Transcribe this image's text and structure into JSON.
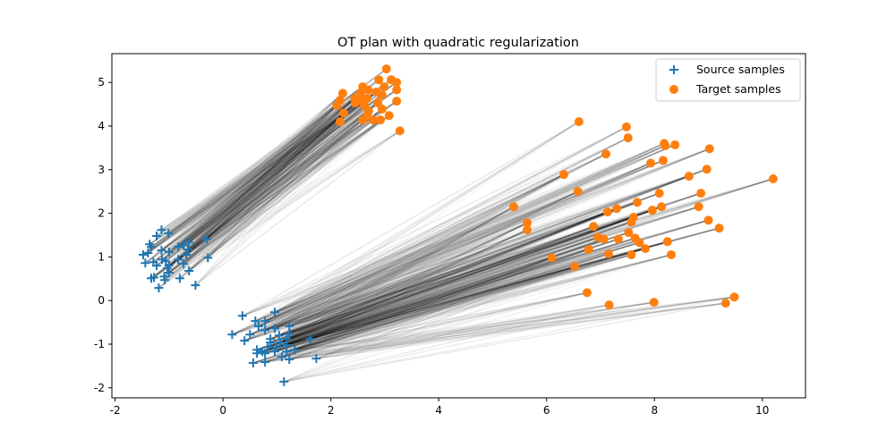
{
  "chart_data": {
    "type": "scatter",
    "title": "OT plan with quadratic regularization",
    "xlabel": "",
    "ylabel": "",
    "xlim": [
      -2.06,
      10.8
    ],
    "ylim": [
      -2.23,
      5.66
    ],
    "xticks": [
      "-2",
      "0",
      "2",
      "4",
      "6",
      "8",
      "10"
    ],
    "yticks": [
      "-2",
      "-1",
      "0",
      "1",
      "2",
      "3",
      "4",
      "5"
    ],
    "grid": false,
    "legend": "top-right",
    "colors": {
      "source": "#1f77b4",
      "target": "#ff7f0e",
      "plan": "#000000"
    },
    "series": [
      {
        "name": "Source samples",
        "marker": "plus",
        "points": [
          [
            -1.14,
            1.62
          ],
          [
            -1.23,
            1.48
          ],
          [
            -1.01,
            1.54
          ],
          [
            -1.36,
            1.29
          ],
          [
            -1.33,
            1.23
          ],
          [
            -0.3,
            1.41
          ],
          [
            -1.48,
            1.05
          ],
          [
            -1.39,
            1.09
          ],
          [
            -1.14,
            1.15
          ],
          [
            -1.0,
            1.11
          ],
          [
            -0.83,
            1.23
          ],
          [
            -0.73,
            1.27
          ],
          [
            -0.63,
            1.33
          ],
          [
            -0.65,
            1.17
          ],
          [
            -0.68,
            1.05
          ],
          [
            -0.28,
            0.98
          ],
          [
            -1.44,
            0.86
          ],
          [
            -1.29,
            0.88
          ],
          [
            -1.23,
            0.8
          ],
          [
            -1.13,
            0.94
          ],
          [
            -1.0,
            0.8
          ],
          [
            -0.83,
            0.94
          ],
          [
            -0.73,
            0.84
          ],
          [
            -0.63,
            0.68
          ],
          [
            -1.0,
            0.64
          ],
          [
            -1.28,
            0.53
          ],
          [
            -1.09,
            0.55
          ],
          [
            -0.8,
            0.51
          ],
          [
            -1.08,
            0.47
          ],
          [
            -1.19,
            0.29
          ],
          [
            -0.51,
            0.35
          ],
          [
            -1.03,
            0.74
          ],
          [
            -1.33,
            0.51
          ],
          [
            -1.06,
            0.9
          ],
          [
            0.36,
            -0.35
          ],
          [
            0.96,
            -0.27
          ],
          [
            0.6,
            -0.47
          ],
          [
            0.78,
            -0.47
          ],
          [
            0.66,
            -0.59
          ],
          [
            0.78,
            -0.68
          ],
          [
            0.96,
            -0.64
          ],
          [
            1.23,
            -0.59
          ],
          [
            0.17,
            -0.78
          ],
          [
            0.5,
            -0.78
          ],
          [
            0.4,
            -0.92
          ],
          [
            1.04,
            -0.8
          ],
          [
            1.23,
            -0.76
          ],
          [
            0.88,
            -0.88
          ],
          [
            1.62,
            -0.88
          ],
          [
            0.63,
            -1.13
          ],
          [
            0.83,
            -1.07
          ],
          [
            0.99,
            -1.07
          ],
          [
            1.18,
            -1.02
          ],
          [
            1.33,
            -1.13
          ],
          [
            0.63,
            -1.21
          ],
          [
            0.78,
            -1.21
          ],
          [
            0.96,
            -1.17
          ],
          [
            1.18,
            -1.17
          ],
          [
            1.09,
            -1.29
          ],
          [
            1.73,
            -1.33
          ],
          [
            1.23,
            -1.35
          ],
          [
            0.56,
            -1.43
          ],
          [
            0.78,
            -1.41
          ],
          [
            1.13,
            -1.86
          ],
          [
            0.88,
            -0.96
          ],
          [
            1.06,
            -0.96
          ],
          [
            1.18,
            -0.88
          ],
          [
            0.73,
            -1.17
          ]
        ]
      },
      {
        "name": "Target samples",
        "marker": "circle",
        "points": [
          [
            3.03,
            5.31
          ],
          [
            2.89,
            5.06
          ],
          [
            3.12,
            5.06
          ],
          [
            3.22,
            5.0
          ],
          [
            2.59,
            4.9
          ],
          [
            2.69,
            4.83
          ],
          [
            2.99,
            4.9
          ],
          [
            3.22,
            4.83
          ],
          [
            2.22,
            4.75
          ],
          [
            2.55,
            4.75
          ],
          [
            2.84,
            4.78
          ],
          [
            2.95,
            4.71
          ],
          [
            3.22,
            4.57
          ],
          [
            2.44,
            4.63
          ],
          [
            2.67,
            4.63
          ],
          [
            2.17,
            4.59
          ],
          [
            2.11,
            4.47
          ],
          [
            2.62,
            4.47
          ],
          [
            2.87,
            4.53
          ],
          [
            2.24,
            4.3
          ],
          [
            2.7,
            4.34
          ],
          [
            2.95,
            4.39
          ],
          [
            2.17,
            4.1
          ],
          [
            2.59,
            4.14
          ],
          [
            2.78,
            4.14
          ],
          [
            2.92,
            4.14
          ],
          [
            3.08,
            4.24
          ],
          [
            2.67,
            4.24
          ],
          [
            3.28,
            3.89
          ],
          [
            2.45,
            4.53
          ],
          [
            2.55,
            4.59
          ],
          [
            6.6,
            4.1
          ],
          [
            7.48,
            3.98
          ],
          [
            7.51,
            3.73
          ],
          [
            8.18,
            3.6
          ],
          [
            8.2,
            3.55
          ],
          [
            8.38,
            3.57
          ],
          [
            7.1,
            3.36
          ],
          [
            9.02,
            3.48
          ],
          [
            7.93,
            3.15
          ],
          [
            8.16,
            3.21
          ],
          [
            6.32,
            2.89
          ],
          [
            8.64,
            2.85
          ],
          [
            8.97,
            3.01
          ],
          [
            10.2,
            2.79
          ],
          [
            6.58,
            2.5
          ],
          [
            8.86,
            2.46
          ],
          [
            8.09,
            2.46
          ],
          [
            5.39,
            2.15
          ],
          [
            7.3,
            2.11
          ],
          [
            7.68,
            2.25
          ],
          [
            8.13,
            2.15
          ],
          [
            8.82,
            2.15
          ],
          [
            7.13,
            2.03
          ],
          [
            7.96,
            2.07
          ],
          [
            7.61,
            1.91
          ],
          [
            7.57,
            1.8
          ],
          [
            5.64,
            1.78
          ],
          [
            5.64,
            1.62
          ],
          [
            9.0,
            1.84
          ],
          [
            6.87,
            1.7
          ],
          [
            9.2,
            1.66
          ],
          [
            6.95,
            1.45
          ],
          [
            7.06,
            1.41
          ],
          [
            7.33,
            1.41
          ],
          [
            7.52,
            1.56
          ],
          [
            7.64,
            1.43
          ],
          [
            7.72,
            1.33
          ],
          [
            8.24,
            1.35
          ],
          [
            6.78,
            1.17
          ],
          [
            7.83,
            1.19
          ],
          [
            6.1,
            0.98
          ],
          [
            7.15,
            1.07
          ],
          [
            7.57,
            1.05
          ],
          [
            8.31,
            1.05
          ],
          [
            6.52,
            0.78
          ],
          [
            6.75,
            0.18
          ],
          [
            7.16,
            -0.1
          ],
          [
            7.99,
            -0.04
          ],
          [
            9.48,
            0.08
          ],
          [
            9.32,
            -0.06
          ]
        ]
      }
    ]
  }
}
